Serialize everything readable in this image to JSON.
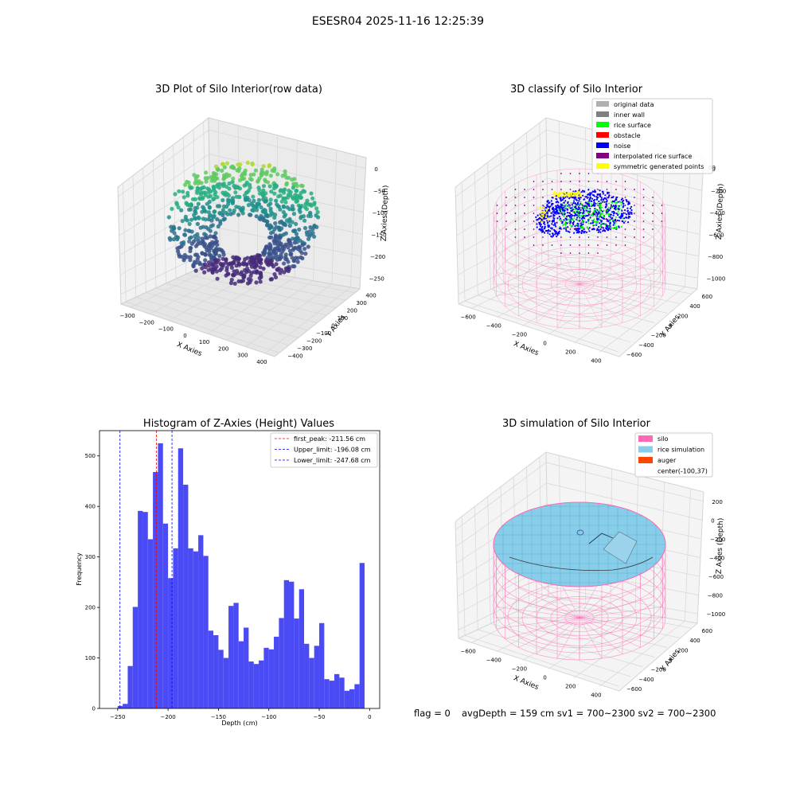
{
  "suptitle": "ESESR04 2025-11-16 12:25:39",
  "footer": {
    "flag": "flag = 0",
    "metrics": "avgDepth = 159 cm  sv1 = 700~2300  sv2 = 700~2300"
  },
  "chart_data": [
    {
      "type": "scatter",
      "projection": "3d",
      "title": "3D Plot of Silo Interior(row data)",
      "xlabel": "X Axies",
      "ylabel": "Y Axies",
      "zlabel": "Z Axies (Depth)",
      "x_ticks": [
        "−300",
        "−200",
        "−100",
        "0",
        "100",
        "200",
        "300",
        "400"
      ],
      "y_ticks": [
        "−400",
        "−300",
        "−200",
        "−100",
        "0",
        "100",
        "200",
        "300",
        "400"
      ],
      "z_ticks": [
        "0",
        "−50",
        "−100",
        "−150",
        "−200",
        "−250"
      ],
      "xlim": [
        -350,
        420
      ],
      "ylim": [
        -420,
        420
      ],
      "zlim": [
        -280,
        10
      ],
      "colormap": "viridis"
    },
    {
      "type": "scatter",
      "projection": "3d",
      "title": "3D classify of Silo Interior",
      "xlabel": "X Axies",
      "ylabel": "Y Axies",
      "zlabel": "Z Axies (Depth)",
      "x_ticks": [
        "−600",
        "−400",
        "−200",
        "0",
        "200",
        "400"
      ],
      "y_ticks": [
        "−600",
        "−400",
        "−200",
        "0",
        "200",
        "400",
        "600"
      ],
      "z_ticks": [
        "0",
        "−200",
        "−400",
        "−600",
        "−800",
        "−1000"
      ],
      "z_tick_partial": "00",
      "legend": [
        {
          "label": "original data",
          "color": "#b0b0b0"
        },
        {
          "label": "inner wall",
          "color": "#808080"
        },
        {
          "label": "rice surface",
          "color": "#00ff00"
        },
        {
          "label": "obstacle",
          "color": "#ff0000"
        },
        {
          "label": "noise",
          "color": "#0000ff"
        },
        {
          "label": "interpolated rice surface",
          "color": "#800080"
        },
        {
          "label": "symmetric generated points",
          "color": "#ffff00"
        }
      ],
      "legend_loc": "upper right",
      "wall_color": "#ff69b4"
    },
    {
      "type": "bar",
      "title": "Histogram of Z-Axies (Height) Values",
      "xlabel": "Depth (cm)",
      "ylabel": "Frequency",
      "bar_color": "#4b4bf5",
      "bin_edges_start": -250,
      "bin_width": 5,
      "values": [
        5,
        9,
        84,
        201,
        391,
        389,
        335,
        468,
        525,
        366,
        258,
        317,
        515,
        443,
        317,
        311,
        343,
        302,
        154,
        145,
        116,
        100,
        203,
        209,
        133,
        160,
        93,
        88,
        95,
        120,
        117,
        142,
        179,
        254,
        251,
        178,
        236,
        128,
        100,
        124,
        169,
        58,
        55,
        68,
        61,
        35,
        38,
        48,
        288
      ],
      "xlim": [
        -268,
        10
      ],
      "ylim": [
        0,
        550
      ],
      "x_ticks": [
        -250,
        -200,
        -150,
        -100,
        -50,
        0
      ],
      "x_tick_labels": [
        "−250",
        "−200",
        "−150",
        "−100",
        "−50",
        "0"
      ],
      "y_ticks": [
        0,
        100,
        200,
        300,
        400,
        500
      ],
      "y_tick_labels": [
        "0",
        "100",
        "200",
        "300",
        "400",
        "500"
      ],
      "vlines": [
        {
          "x": -211.56,
          "color": "#ff0000",
          "label": "first_peak: -211.56 cm"
        },
        {
          "x": -196.08,
          "color": "#0000ff",
          "label": "Upper_limit: -196.08 cm"
        },
        {
          "x": -247.68,
          "color": "#0000ff",
          "label": "Lower_limit: -247.68 cm"
        }
      ],
      "legend_loc": "upper right"
    },
    {
      "type": "surface",
      "projection": "3d",
      "title": "3D simulation of Silo Interior",
      "xlabel": "X Axies",
      "ylabel": "Y Axies",
      "zlabel": "Z Axies (Depth)",
      "x_ticks": [
        "−600",
        "−400",
        "−200",
        "0",
        "200",
        "400"
      ],
      "y_ticks": [
        "−600",
        "−400",
        "−200",
        "0",
        "200",
        "400",
        "600"
      ],
      "z_ticks": [
        "200",
        "0",
        "−200",
        "−400",
        "−600",
        "−800",
        "−1000"
      ],
      "legend": [
        {
          "label": "silo",
          "color": "#ff69b4"
        },
        {
          "label": "rice simulation",
          "color": "#87ceeb"
        },
        {
          "label": "auger",
          "color": "#ff4500"
        },
        {
          "label": "center(-100,37)",
          "color": ""
        }
      ],
      "legend_loc": "upper right"
    }
  ]
}
